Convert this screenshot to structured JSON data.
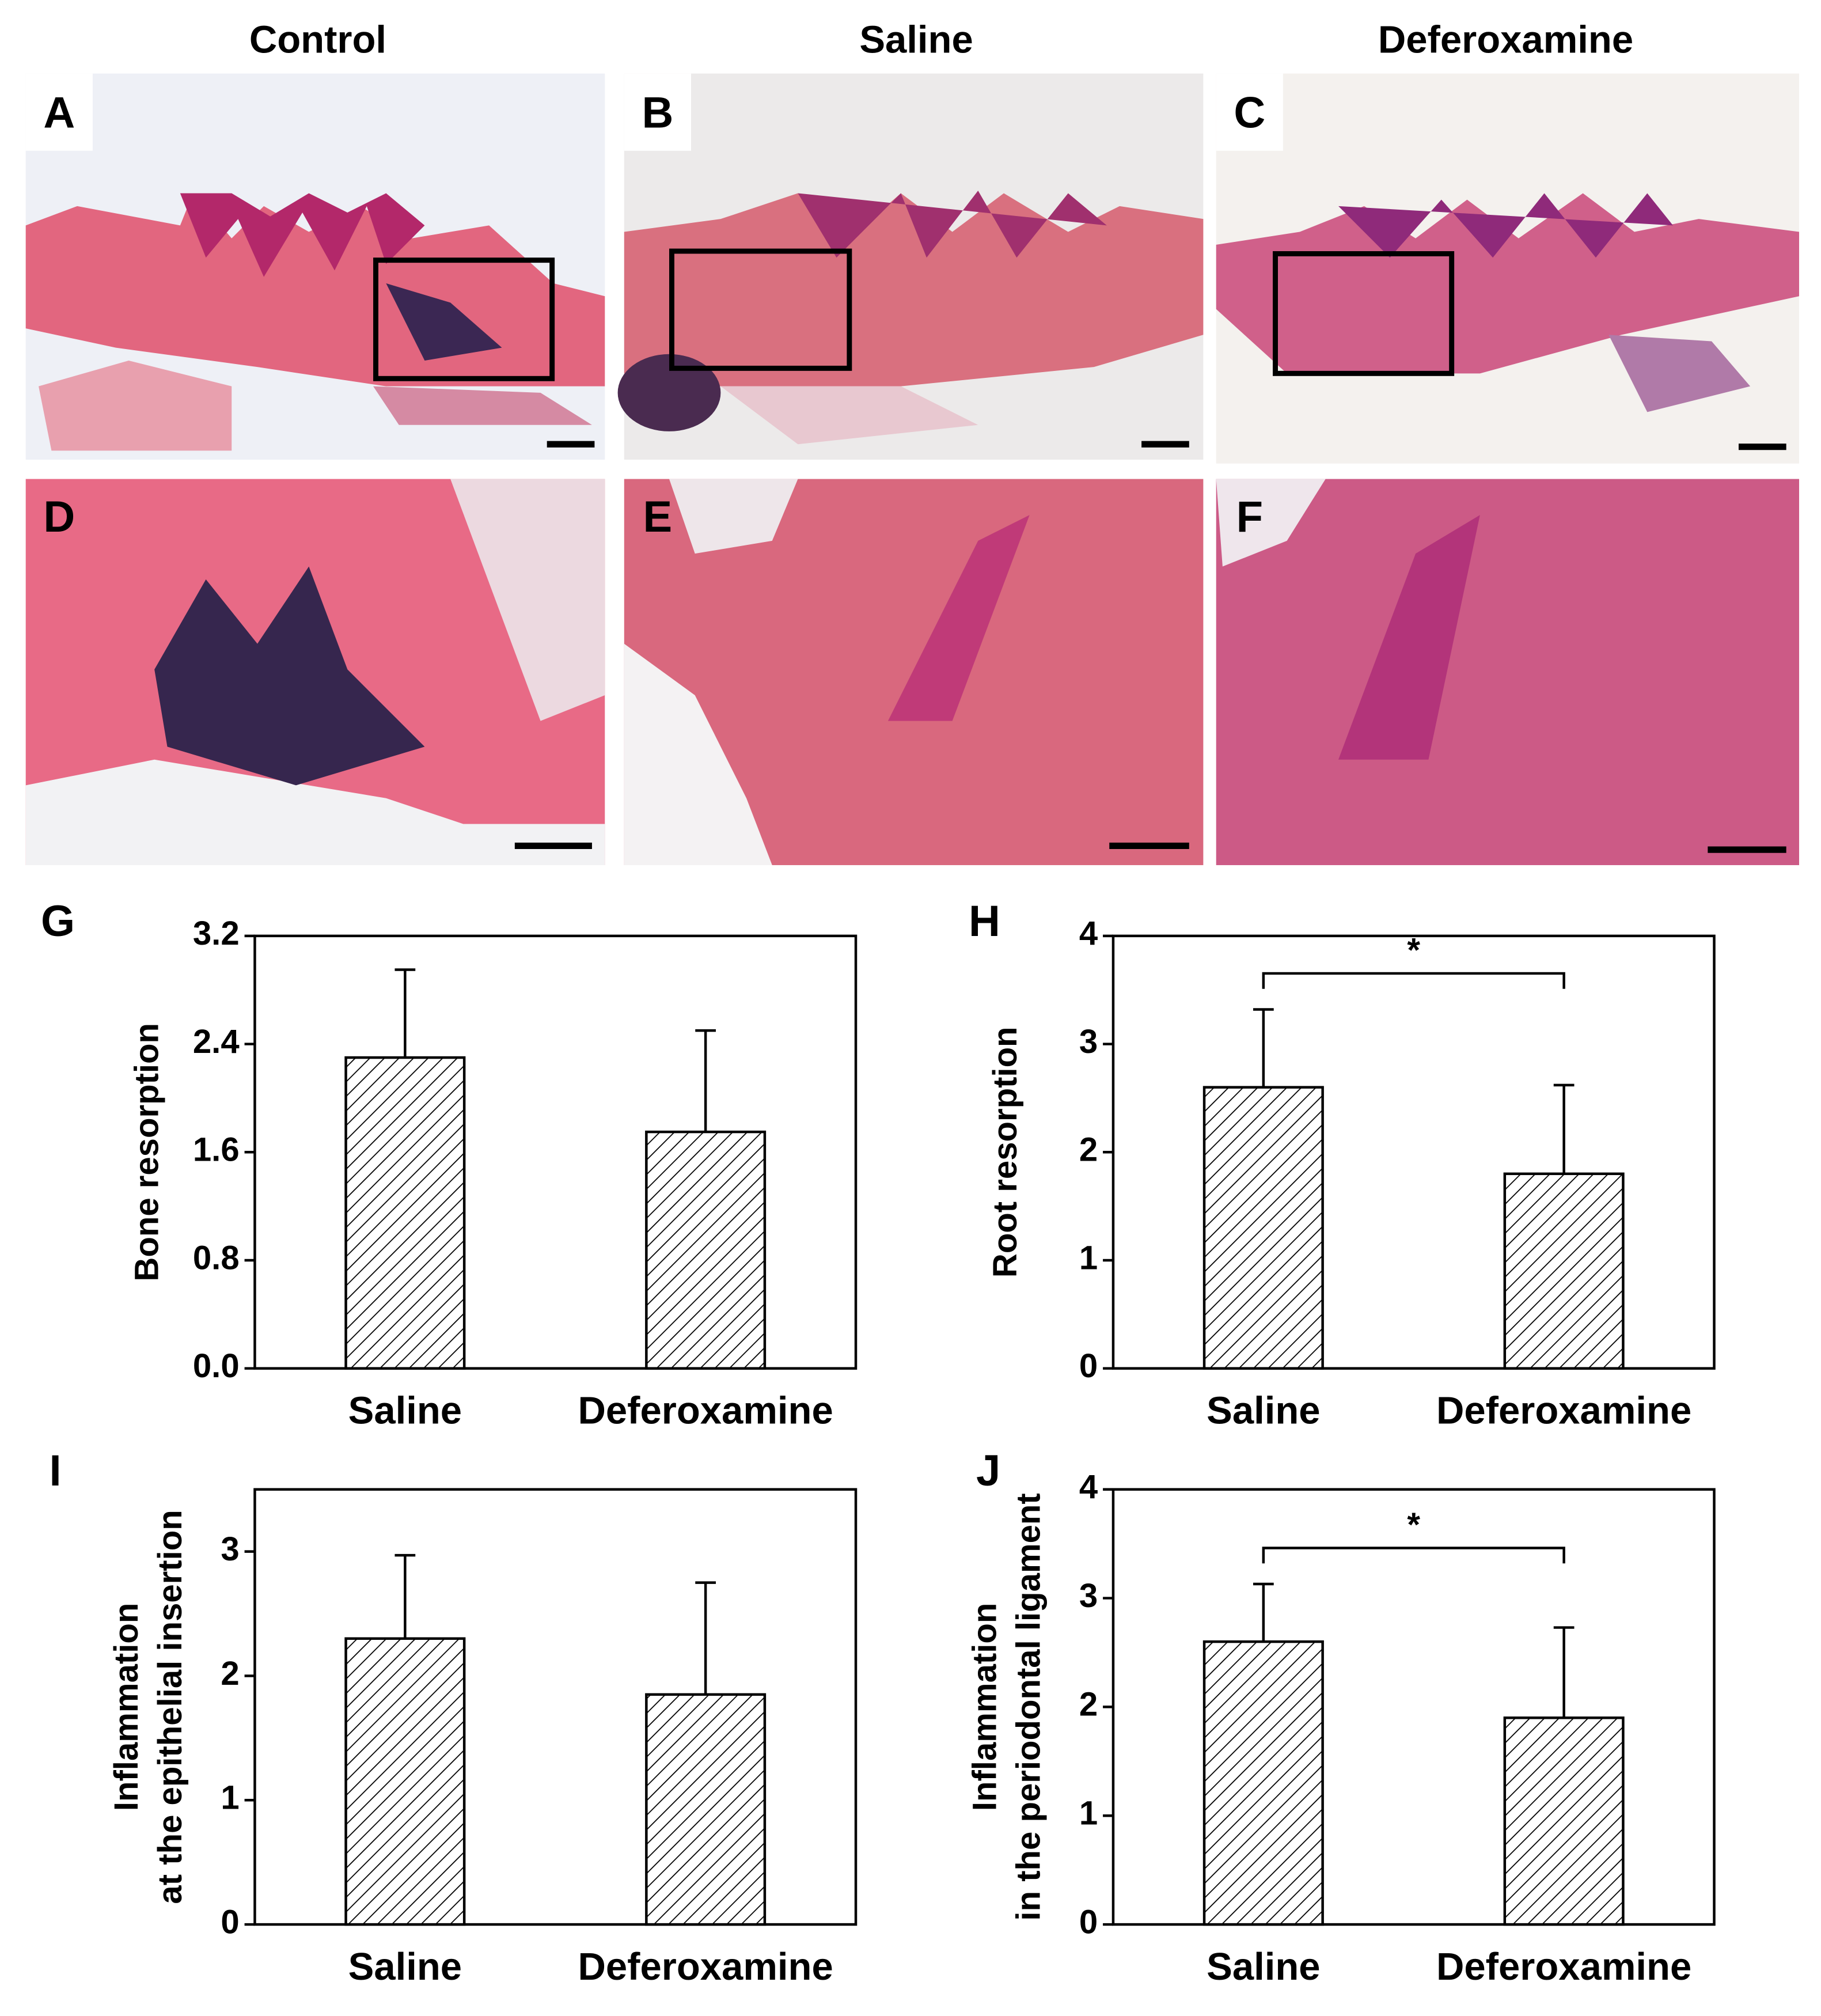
{
  "column_headers": [
    "Control",
    "Saline",
    "Deferoxamine"
  ],
  "image_panels": [
    "A",
    "B",
    "C",
    "D",
    "E",
    "F"
  ],
  "chart_data": [
    {
      "type": "bar",
      "label": "G",
      "ylabel": [
        "Bone resorption"
      ],
      "categories": [
        "Saline",
        "Deferoxamine"
      ],
      "values": [
        2.3,
        1.75
      ],
      "errors": [
        0.65,
        0.75
      ],
      "color": "#000000",
      "ylim": [
        0,
        3.2
      ],
      "yticks": [
        {
          "value": 0,
          "label": "0.0"
        },
        0.8,
        1.6,
        2.4,
        3.2
      ]
    },
    {
      "type": "bar",
      "label": "H",
      "ylabel": [
        "Root resorption"
      ],
      "categories": [
        "Saline",
        "Deferoxamine"
      ],
      "values": [
        2.6,
        1.8
      ],
      "errors": [
        0.72,
        0.82
      ],
      "color": "#000000",
      "annotation": "*",
      "ylim": [
        0,
        4
      ],
      "yticks": [
        0,
        1,
        2,
        3,
        4
      ]
    },
    {
      "type": "bar",
      "label": "I",
      "ylabel": [
        "Inflammation",
        "at the epithelial insertion"
      ],
      "categories": [
        "Saline",
        "Deferoxamine"
      ],
      "values": [
        2.3,
        1.85
      ],
      "errors": [
        0.67,
        0.9
      ],
      "color": "#000000",
      "ylim": [
        0,
        3.5
      ],
      "yticks": [
        0,
        1,
        2,
        3
      ]
    },
    {
      "type": "bar",
      "label": "J",
      "ylabel": [
        "Inflammation",
        "in the periodontal ligament"
      ],
      "categories": [
        "Saline",
        "Deferoxamine"
      ],
      "values": [
        2.6,
        1.9
      ],
      "errors": [
        0.53,
        0.83
      ],
      "color": "#000000",
      "annotation": "*",
      "ylim": [
        0,
        4
      ],
      "yticks": [
        0,
        1,
        2,
        3,
        4
      ]
    }
  ]
}
